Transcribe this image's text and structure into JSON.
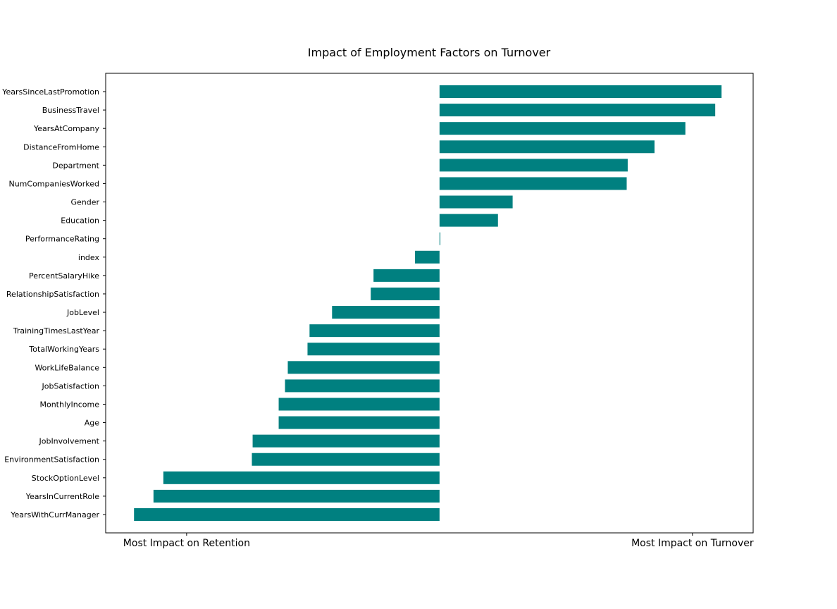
{
  "chart_data": {
    "type": "bar",
    "orientation": "horizontal",
    "title": "Impact of Employment Factors on Turnover",
    "xlabel": "",
    "ylabel": "",
    "categories": [
      "YearsSinceLastPromotion",
      "BusinessTravel",
      "YearsAtCompany",
      "DistanceFromHome",
      "Department",
      "NumCompaniesWorked",
      "Gender",
      "Education",
      "PerformanceRating",
      "index",
      "PercentSalaryHike",
      "RelationshipSatisfaction",
      "JobLevel",
      "TrainingTimesLastYear",
      "TotalWorkingYears",
      "WorkLifeBalance",
      "JobSatisfaction",
      "MonthlyIncome",
      "Age",
      "JobInvolvement",
      "EnvironmentSatisfaction",
      "StockOptionLevel",
      "YearsInCurrentRole",
      "YearsWithCurrManager"
    ],
    "values": [
      1.115,
      1.09,
      0.972,
      0.85,
      0.744,
      0.74,
      0.289,
      0.231,
      0.003,
      -0.097,
      -0.261,
      -0.272,
      -0.425,
      -0.514,
      -0.522,
      -0.6,
      -0.611,
      -0.636,
      -0.636,
      -0.739,
      -0.742,
      -1.092,
      -1.131,
      -1.208
    ],
    "xlim": [
      -1.32,
      1.24
    ],
    "xticks": [
      {
        "value": -1,
        "label": "Most Impact on Retention"
      },
      {
        "value": 1,
        "label": "Most Impact on Turnover"
      }
    ],
    "grid": false,
    "bar_color": "#008080"
  }
}
